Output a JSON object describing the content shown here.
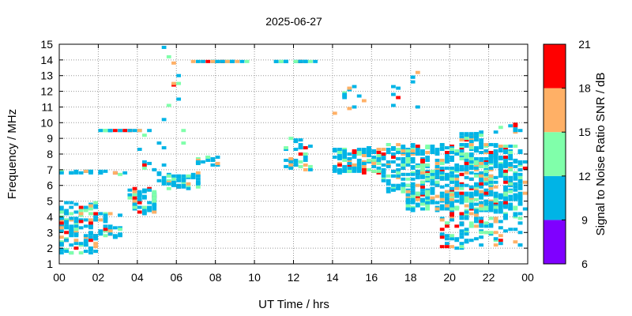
{
  "chart_data": {
    "type": "heatmap",
    "title": "2025-06-27",
    "xlabel": "UT Time / hrs",
    "ylabel": "Frequency / MHz",
    "xlim": [
      0,
      24
    ],
    "ylim": [
      1,
      15
    ],
    "x_ticks": [
      "00",
      "02",
      "04",
      "06",
      "08",
      "10",
      "12",
      "14",
      "16",
      "18",
      "20",
      "22",
      "00"
    ],
    "y_ticks": [
      "1",
      "2",
      "3",
      "4",
      "5",
      "6",
      "7",
      "8",
      "9",
      "10",
      "11",
      "12",
      "13",
      "14",
      "15"
    ],
    "grid": true,
    "colorbar": {
      "label": "Signal to Noise Ratio SNR / dB",
      "ticks": [
        "6",
        "9",
        "12",
        "15",
        "18",
        "21"
      ],
      "range": [
        6,
        21
      ],
      "bands": [
        {
          "min": 6,
          "max": 9,
          "color": "#7f00ff"
        },
        {
          "min": 9,
          "max": 12,
          "color": "#00b4e6"
        },
        {
          "min": 12,
          "max": 15,
          "color": "#80ffaa"
        },
        {
          "min": 15,
          "max": 18,
          "color": "#ffb066"
        },
        {
          "min": 18,
          "max": 21,
          "color": "#ff0000"
        }
      ]
    },
    "clusters": [
      {
        "t0": 0.0,
        "t1": 1.9,
        "f0": 1.6,
        "f1": 5.0,
        "n": 140
      },
      {
        "t0": 0.0,
        "t1": 2.3,
        "f0": 6.8,
        "f1": 6.9,
        "n": 22
      },
      {
        "t0": 1.9,
        "t1": 3.2,
        "f0": 2.6,
        "f1": 4.2,
        "n": 40
      },
      {
        "t0": 2.2,
        "t1": 3.6,
        "f0": 6.6,
        "f1": 6.8,
        "n": 6
      },
      {
        "t0": 2.0,
        "t1": 4.6,
        "f0": 9.45,
        "f1": 9.55,
        "n": 24
      },
      {
        "t0": 3.7,
        "t1": 5.0,
        "f0": 4.2,
        "f1": 5.8,
        "n": 60
      },
      {
        "t0": 4.0,
        "t1": 5.5,
        "f0": 7.0,
        "f1": 9.2,
        "n": 10
      },
      {
        "t0": 5.0,
        "t1": 7.2,
        "f0": 5.8,
        "f1": 6.8,
        "n": 55
      },
      {
        "t0": 5.2,
        "t1": 6.4,
        "f0": 8.5,
        "f1": 14.9,
        "n": 12
      },
      {
        "t0": 6.8,
        "t1": 9.6,
        "f0": 13.85,
        "f1": 13.95,
        "n": 30
      },
      {
        "t0": 7.0,
        "t1": 8.2,
        "f0": 7.3,
        "f1": 7.8,
        "n": 18
      },
      {
        "t0": 11.0,
        "t1": 13.2,
        "f0": 13.85,
        "f1": 13.95,
        "n": 26
      },
      {
        "t0": 11.5,
        "t1": 13.0,
        "f0": 7.0,
        "f1": 9.0,
        "n": 40
      },
      {
        "t0": 14.0,
        "t1": 16.5,
        "f0": 6.8,
        "f1": 8.4,
        "n": 110
      },
      {
        "t0": 14.2,
        "t1": 16.0,
        "f0": 10.4,
        "f1": 12.5,
        "n": 12
      },
      {
        "t0": 16.5,
        "t1": 23.8,
        "f0": 5.6,
        "f1": 8.6,
        "n": 560
      },
      {
        "t0": 17.8,
        "t1": 23.8,
        "f0": 4.4,
        "f1": 5.6,
        "n": 260
      },
      {
        "t0": 19.5,
        "t1": 23.8,
        "f0": 2.0,
        "f1": 4.4,
        "n": 120
      },
      {
        "t0": 20.5,
        "t1": 21.6,
        "f0": 8.4,
        "f1": 9.4,
        "n": 40
      },
      {
        "t0": 22.3,
        "t1": 24.0,
        "f0": 9.2,
        "f1": 10.0,
        "n": 10
      },
      {
        "t0": 17.0,
        "t1": 18.4,
        "f0": 10.8,
        "f1": 13.4,
        "n": 10
      }
    ],
    "seed": 20250627
  }
}
